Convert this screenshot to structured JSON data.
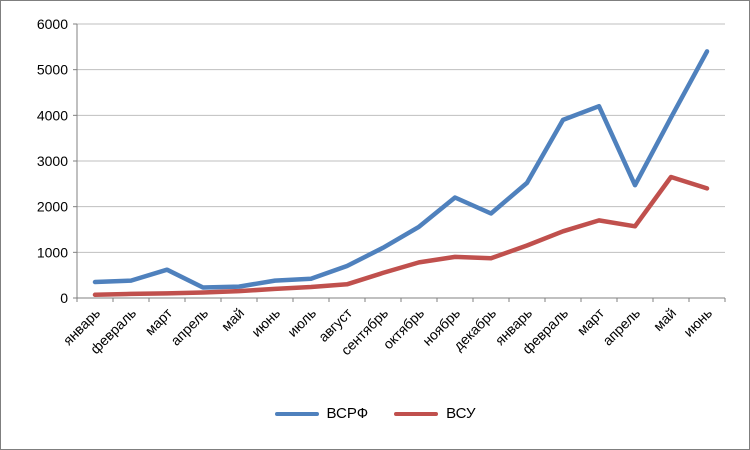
{
  "window": {
    "background_color": "#FFFFFF",
    "border_color": "#7F7F7F"
  },
  "chart_data": {
    "type": "line",
    "categories": [
      "январь",
      "февраль",
      "март",
      "апрель",
      "май",
      "июнь",
      "июль",
      "август",
      "сентябрь",
      "октябрь",
      "ноябрь",
      "декабрь",
      "январь",
      "февраль",
      "март",
      "апрель",
      "май",
      "июнь"
    ],
    "series": [
      {
        "name": "ВСРФ",
        "color": "#4F81BD",
        "values": [
          350,
          380,
          620,
          230,
          250,
          380,
          420,
          700,
          1100,
          1560,
          2200,
          1850,
          2520,
          3900,
          4200,
          2470,
          3950,
          5400
        ]
      },
      {
        "name": "ВСУ",
        "color": "#C0504D",
        "values": [
          70,
          90,
          100,
          120,
          150,
          200,
          240,
          300,
          550,
          780,
          900,
          870,
          1150,
          1460,
          1700,
          1570,
          2650,
          2400
        ]
      }
    ],
    "title": "",
    "xlabel": "",
    "ylabel": "",
    "ylim": [
      0,
      6000
    ],
    "ytick_step": 1000,
    "ytick_labels": [
      "0",
      "1000",
      "2000",
      "3000",
      "4000",
      "5000",
      "6000"
    ],
    "grid": true,
    "gridline_color": "#BFBFBF",
    "axis_color": "#808080",
    "text_color": "#000000",
    "x_label_rotation": -45,
    "legend_position": "bottom"
  }
}
